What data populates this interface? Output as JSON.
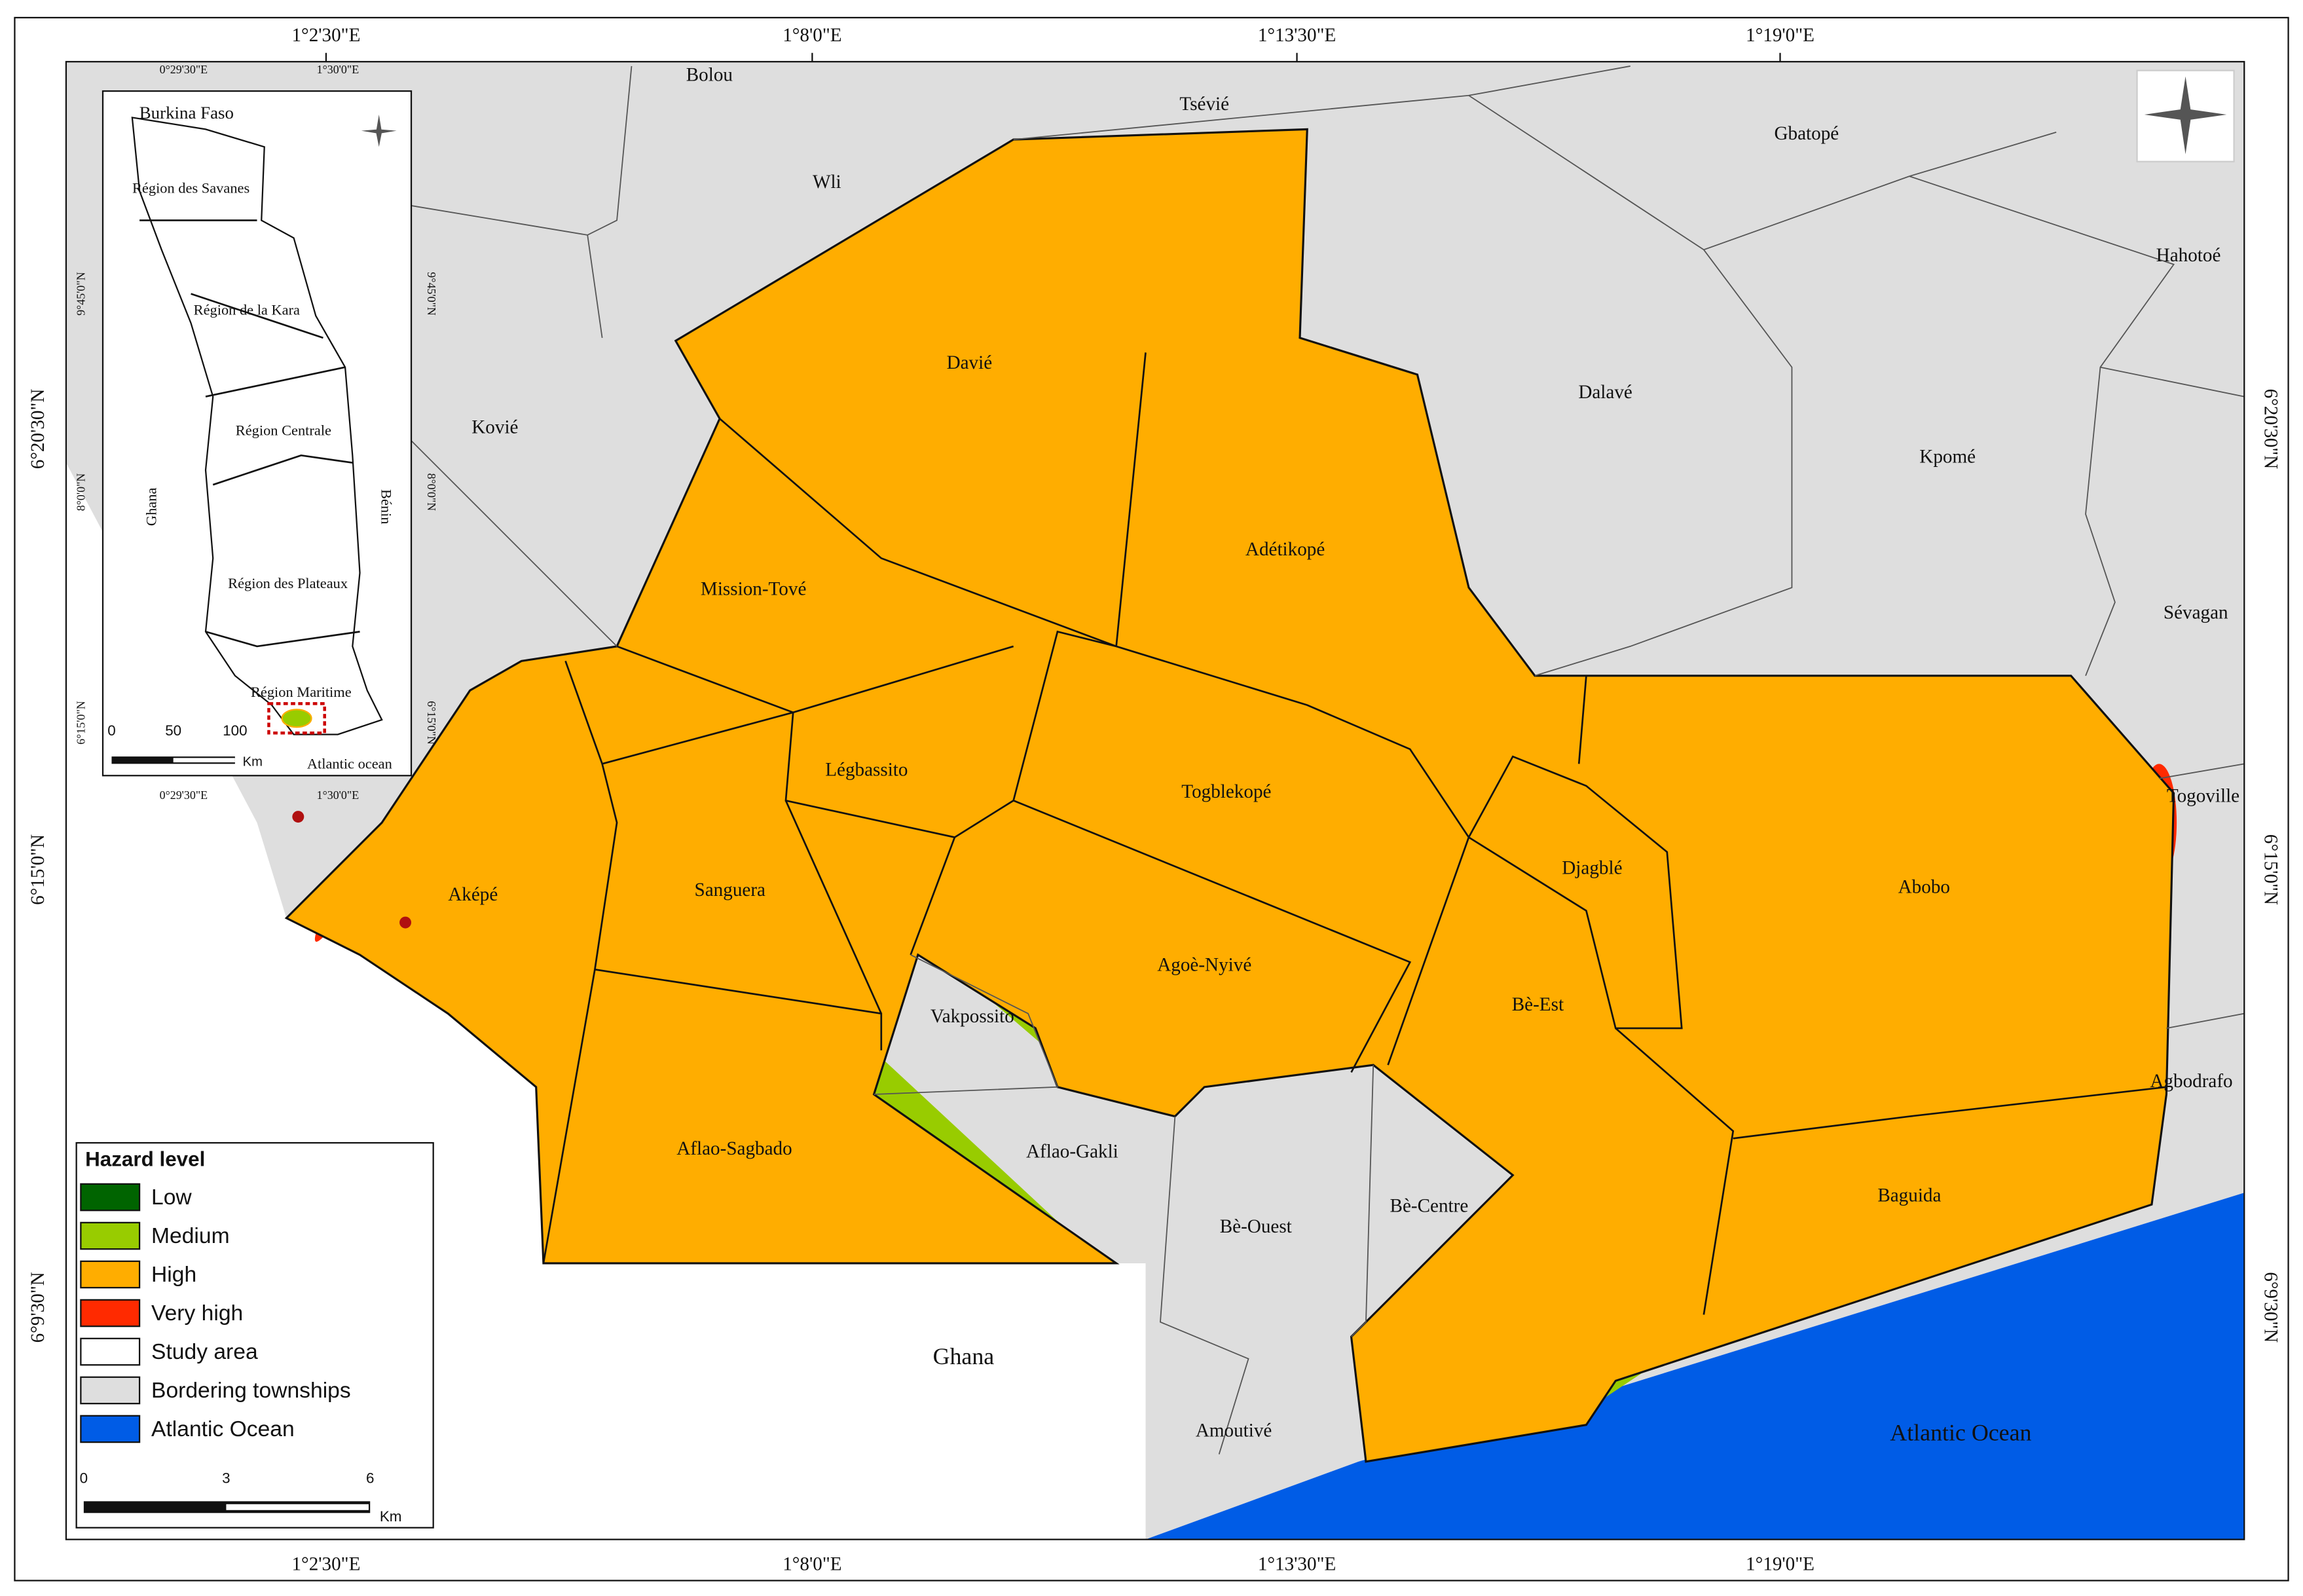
{
  "graticule": {
    "lon": [
      "1°2'30\"E",
      "1°8'0\"E",
      "1°13'30\"E",
      "1°19'0\"E"
    ],
    "lat": [
      "6°20'30\"N",
      "6°15'0\"N",
      "6°9'30\"N"
    ]
  },
  "places": [
    "Bolou",
    "Tsévié",
    "Wli",
    "Gbatopé",
    "Hahotoé",
    "Davié",
    "Dalavé",
    "Kovié",
    "Kpomé",
    "Adétikopé",
    "Mission-Tové",
    "Sévagan",
    "Légbassito",
    "Togblekopé",
    "Togoville",
    "Djagblé",
    "Abobo",
    "Aképé",
    "Sanguera",
    "Agoè-Nyivé",
    "Vakpossito",
    "Bè-Est",
    "Agbodrafo",
    "Aflao-Sagbado",
    "Aflao-Gakli",
    "Baguida",
    "Bè-Ouest",
    "Bè-Centre",
    "Ghana",
    "Amoutivé",
    "Atlantic Ocean"
  ],
  "legend": {
    "title": "Hazard level",
    "items": [
      {
        "label": "Low",
        "color": "#006400"
      },
      {
        "label": "Medium",
        "color": "#98cc00"
      },
      {
        "label": "High",
        "color": "#ffad00"
      },
      {
        "label": "Very high",
        "color": "#ff2a00"
      },
      {
        "label": "Study area",
        "color": "#ffffff"
      },
      {
        "label": "Bordering townships",
        "color": "#dedede"
      },
      {
        "label": "Atlantic Ocean",
        "color": "#005ce6"
      }
    ]
  },
  "scale_bar": {
    "labels": [
      "0",
      "3",
      "6"
    ],
    "unit": "Km"
  },
  "inset": {
    "labels": [
      "Burkina Faso",
      "Région des Savanes",
      "Région de la Kara",
      "Région Centrale",
      "Ghana",
      "Bénin",
      "Région des Plateaux",
      "Région Maritime",
      "Atlantic ocean"
    ],
    "lon": [
      "0°29'30\"E",
      "1°30'0\"E"
    ],
    "lat": [
      "9°45'0\"N",
      "8°0'0\"N",
      "6°15'0\"N"
    ],
    "scale": [
      "0",
      "50",
      "100"
    ],
    "unit": "Km"
  }
}
